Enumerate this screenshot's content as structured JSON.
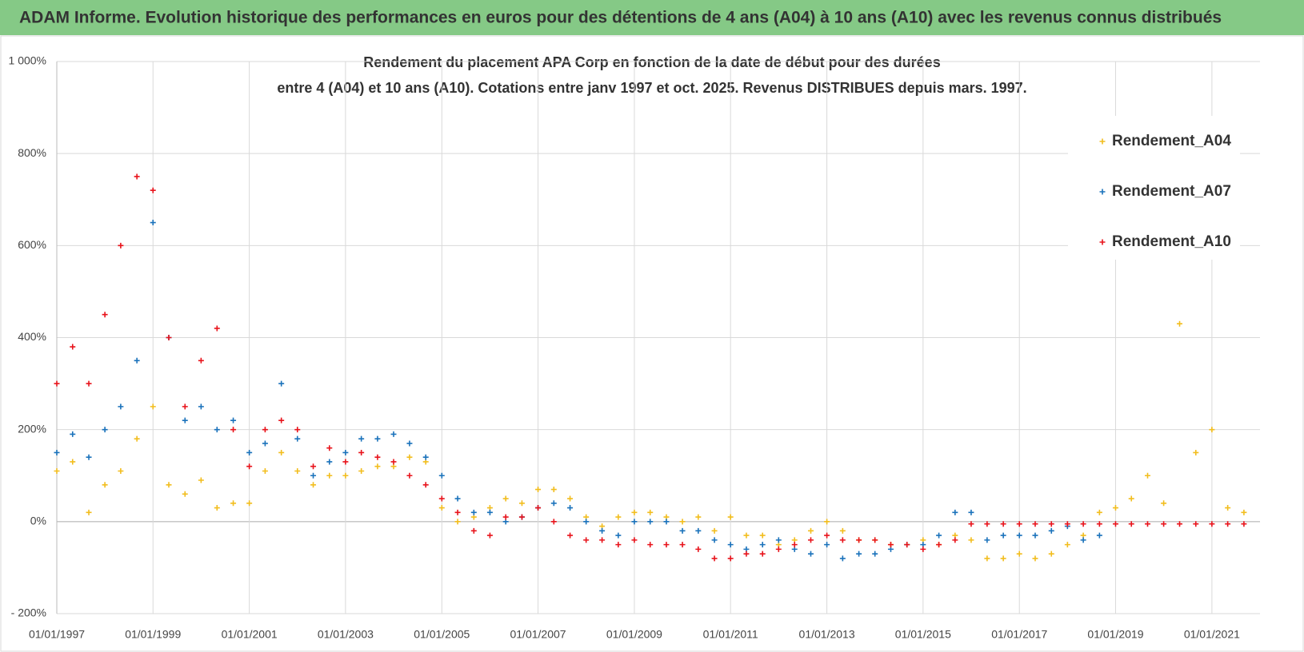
{
  "header": {
    "title": "ADAM Informe. Evolution historique des performances en euros pour des détentions de 4 ans (A04) à 10 ans (A10) avec les revenus connus distribués"
  },
  "chart_data": {
    "type": "scatter",
    "title": [
      "Rendement du placement APA Corp en fonction de la date de début pour des durées",
      "entre 4 (A04) et 10 ans (A10).  Cotations entre janv 1997 et oct. 2025.  Revenus DISTRIBUES depuis mars. 1997."
    ],
    "xlim": [
      "1997-01-01",
      "2022-01-01"
    ],
    "xticks": [
      {
        "value": "1997-01-01",
        "label": "01/01/1997"
      },
      {
        "value": "1999-01-01",
        "label": "01/01/1999"
      },
      {
        "value": "2001-01-01",
        "label": "01/01/2001"
      },
      {
        "value": "2003-01-01",
        "label": "01/01/2003"
      },
      {
        "value": "2005-01-01",
        "label": "01/01/2005"
      },
      {
        "value": "2007-01-01",
        "label": "01/01/2007"
      },
      {
        "value": "2009-01-01",
        "label": "01/01/2009"
      },
      {
        "value": "2011-01-01",
        "label": "01/01/2011"
      },
      {
        "value": "2013-01-01",
        "label": "01/01/2013"
      },
      {
        "value": "2015-01-01",
        "label": "01/01/2015"
      },
      {
        "value": "2017-01-01",
        "label": "01/01/2017"
      },
      {
        "value": "2019-01-01",
        "label": "01/01/2019"
      },
      {
        "value": "2021-01-01",
        "label": "01/01/2021"
      }
    ],
    "ylim": [
      -200,
      1000
    ],
    "yticks": [
      {
        "value": -200,
        "label": "- 200%"
      },
      {
        "value": 0,
        "label": "0%"
      },
      {
        "value": 200,
        "label": "200%"
      },
      {
        "value": 400,
        "label": "400%"
      },
      {
        "value": 600,
        "label": "600%"
      },
      {
        "value": 800,
        "label": "800%"
      },
      {
        "value": 1000,
        "label": "1 000%"
      }
    ],
    "grid": true,
    "legend": "upper right",
    "x": [
      "1997-01",
      "1997-05",
      "1997-09",
      "1998-01",
      "1998-05",
      "1998-09",
      "1999-01",
      "1999-05",
      "1999-09",
      "2000-01",
      "2000-05",
      "2000-09",
      "2001-01",
      "2001-05",
      "2001-09",
      "2002-01",
      "2002-05",
      "2002-09",
      "2003-01",
      "2003-05",
      "2003-09",
      "2004-01",
      "2004-05",
      "2004-09",
      "2005-01",
      "2005-05",
      "2005-09",
      "2006-01",
      "2006-05",
      "2006-09",
      "2007-01",
      "2007-05",
      "2007-09",
      "2008-01",
      "2008-05",
      "2008-09",
      "2009-01",
      "2009-05",
      "2009-09",
      "2010-01",
      "2010-05",
      "2010-09",
      "2011-01",
      "2011-05",
      "2011-09",
      "2012-01",
      "2012-05",
      "2012-09",
      "2013-01",
      "2013-05",
      "2013-09",
      "2014-01",
      "2014-05",
      "2014-09",
      "2015-01",
      "2015-05",
      "2015-09",
      "2016-01",
      "2016-05",
      "2016-09",
      "2017-01",
      "2017-05",
      "2017-09",
      "2018-01",
      "2018-05",
      "2018-09",
      "2019-01",
      "2019-05",
      "2019-09",
      "2020-01",
      "2020-05",
      "2020-09",
      "2021-01",
      "2021-05",
      "2021-09"
    ],
    "series": [
      {
        "name": "Rendement_A04",
        "color": "#f2bd1d",
        "values": [
          110,
          130,
          20,
          80,
          110,
          180,
          250,
          80,
          60,
          90,
          30,
          40,
          40,
          110,
          150,
          110,
          80,
          100,
          100,
          110,
          120,
          120,
          140,
          130,
          30,
          0,
          10,
          30,
          50,
          40,
          70,
          70,
          50,
          10,
          -10,
          10,
          20,
          20,
          10,
          0,
          10,
          -20,
          10,
          -30,
          -30,
          -50,
          -40,
          -20,
          0,
          -20,
          -40,
          -40,
          -50,
          -50,
          -40,
          -50,
          -30,
          -40,
          -80,
          -80,
          -70,
          -80,
          -70,
          -50,
          -30,
          20,
          30,
          50,
          100,
          40,
          430,
          150,
          200,
          30,
          20
        ]
      },
      {
        "name": "Rendement_A07",
        "color": "#1a72bb",
        "values": [
          150,
          190,
          140,
          200,
          250,
          350,
          650,
          400,
          220,
          250,
          200,
          220,
          150,
          170,
          300,
          180,
          100,
          130,
          150,
          180,
          180,
          190,
          170,
          140,
          100,
          50,
          20,
          20,
          0,
          10,
          30,
          40,
          30,
          0,
          -20,
          -30,
          0,
          0,
          0,
          -20,
          -20,
          -40,
          -50,
          -60,
          -50,
          -40,
          -60,
          -70,
          -50,
          -80,
          -70,
          -70,
          -60,
          -50,
          -50,
          -30,
          20,
          20,
          -40,
          -30,
          -30,
          -30,
          -20,
          -10,
          -40,
          -30,
          null,
          null,
          null,
          null,
          null,
          null,
          null,
          null,
          null
        ]
      },
      {
        "name": "Rendement_A10",
        "color": "#e8131b",
        "values": [
          300,
          380,
          300,
          450,
          600,
          750,
          720,
          400,
          250,
          350,
          420,
          200,
          120,
          200,
          220,
          200,
          120,
          160,
          130,
          150,
          140,
          130,
          100,
          80,
          50,
          20,
          -20,
          -30,
          10,
          10,
          30,
          0,
          -30,
          -40,
          -40,
          -50,
          -40,
          -50,
          -50,
          -50,
          -60,
          -80,
          -80,
          -70,
          -70,
          -60,
          -50,
          -40,
          -30,
          -40,
          -40,
          -40,
          -50,
          -50,
          -60,
          -50,
          -40,
          -5,
          -5,
          -5,
          -5,
          -5,
          -5,
          -5,
          -5,
          -5,
          -5,
          -5,
          -5,
          -5,
          -5,
          -5,
          -5,
          -5,
          -5
        ]
      }
    ]
  }
}
